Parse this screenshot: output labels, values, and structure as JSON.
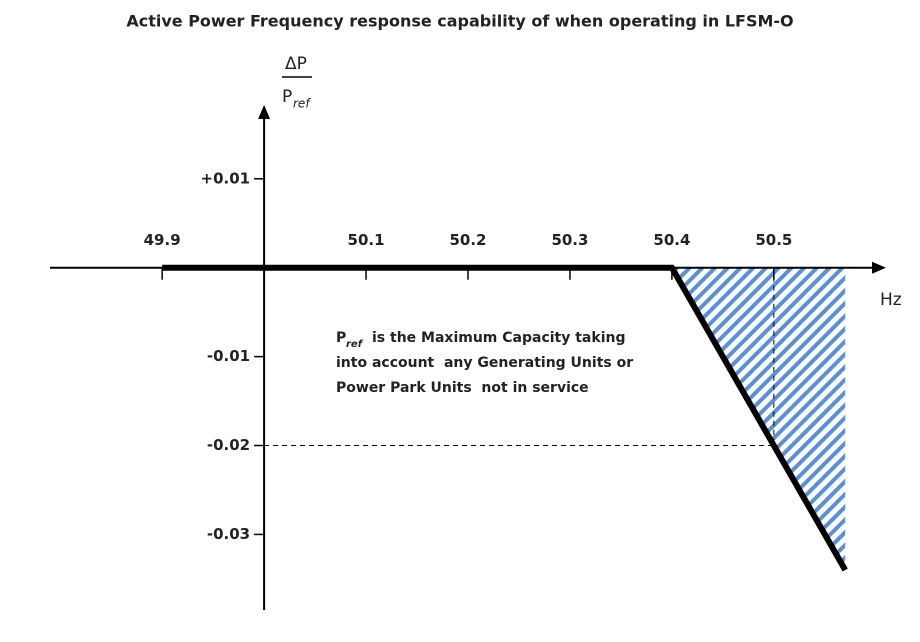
{
  "chart_data": {
    "type": "line",
    "title": "Active Power Frequency response capability of when operating in LFSM-O",
    "y_label": {
      "numerator": "ΔP",
      "denominator": "P",
      "subscript": "ref"
    },
    "x_label": "Hz",
    "xlim": [
      49.79,
      50.61
    ],
    "ylim": [
      -0.0385,
      0.0183
    ],
    "xticks": [
      49.9,
      50.1,
      50.2,
      50.3,
      50.4,
      50.5
    ],
    "yticks": [
      {
        "value": 0.01,
        "label": "+0.01"
      },
      -0.01,
      -0.02,
      -0.03
    ],
    "y_axis_at": 50,
    "series": [
      {
        "color": "#000000",
        "x": [
          49.9,
          50.4,
          50.57
        ],
        "values": [
          0,
          0,
          -0.034
        ]
      }
    ],
    "hatch_color": "#5b8fd6",
    "reference_point": [
      50.5,
      -0.02
    ],
    "annotation": {
      "symbol": "P",
      "subscript": "ref",
      "lines": [
        "is the Maximum Capacity taking",
        "into account  any Generating Units or",
        "Power Park Units  not in service"
      ]
    }
  }
}
